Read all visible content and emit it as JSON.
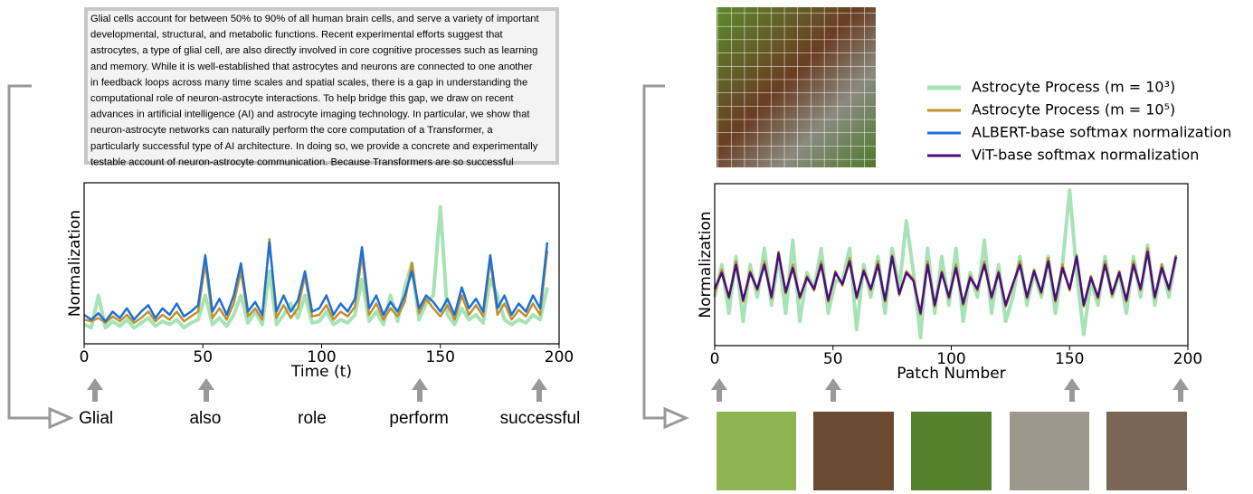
{
  "passage": {
    "lines": [
      "Glial cells account for between 50% to 90% of all human brain cells, and serve a variety of important",
      "developmental, structural, and metabolic functions. Recent experimental efforts suggest that",
      "astrocytes, a type of glial cell, are also directly involved in core cognitive processes such as learning",
      "and memory. While it is well-established that astrocytes and neurons are connected to one another",
      "in feedback loops across many time scales and spatial scales, there is a gap in understanding the",
      "computational role of neuron-astrocyte interactions. To help bridge this gap, we draw on recent",
      "advances in artificial intelligence (AI) and astrocyte imaging technology. In particular, we show that",
      "neuron-astrocyte networks can naturally perform the core computation of a Transformer, a",
      "particularly successful type of AI architecture. In doing so, we provide a concrete and experimentally",
      "testable account of neuron-astrocyte communication. Because Transformers are so successful"
    ]
  },
  "chart_data": [
    {
      "type": "line",
      "xlabel": "Time (t)",
      "ylabel": "Normalization",
      "xlim": [
        0,
        200
      ],
      "xticks": [
        0,
        50,
        100,
        150,
        200
      ],
      "ylim": [
        0,
        1
      ],
      "x": [
        0,
        3,
        6,
        9,
        12,
        15,
        18,
        21,
        24,
        27,
        30,
        33,
        36,
        39,
        42,
        45,
        48,
        51,
        54,
        57,
        60,
        63,
        66,
        69,
        72,
        75,
        78,
        81,
        84,
        87,
        90,
        93,
        96,
        99,
        102,
        105,
        108,
        111,
        114,
        117,
        120,
        123,
        126,
        129,
        132,
        135,
        138,
        141,
        144,
        147,
        150,
        153,
        156,
        159,
        162,
        165,
        168,
        171,
        174,
        177,
        180,
        183,
        186,
        189,
        192,
        195
      ],
      "series": [
        {
          "color": "#a6e3b5",
          "values": [
            0.12,
            0.1,
            0.3,
            0.1,
            0.14,
            0.11,
            0.15,
            0.1,
            0.13,
            0.16,
            0.11,
            0.14,
            0.12,
            0.15,
            0.1,
            0.13,
            0.15,
            0.3,
            0.12,
            0.16,
            0.11,
            0.18,
            0.3,
            0.13,
            0.2,
            0.12,
            0.45,
            0.12,
            0.18,
            0.25,
            0.16,
            0.3,
            0.13,
            0.14,
            0.2,
            0.12,
            0.15,
            0.13,
            0.18,
            0.4,
            0.14,
            0.2,
            0.12,
            0.3,
            0.14,
            0.35,
            0.5,
            0.15,
            0.25,
            0.3,
            0.85,
            0.18,
            0.12,
            0.22,
            0.15,
            0.18,
            0.13,
            0.4,
            0.3,
            0.15,
            0.12,
            0.15,
            0.13,
            0.18,
            0.15,
            0.35
          ]
        },
        {
          "color": "#c0912f",
          "values": [
            0.15,
            0.14,
            0.16,
            0.13,
            0.17,
            0.14,
            0.18,
            0.13,
            0.16,
            0.2,
            0.14,
            0.18,
            0.15,
            0.2,
            0.14,
            0.17,
            0.2,
            0.5,
            0.16,
            0.22,
            0.15,
            0.25,
            0.45,
            0.17,
            0.22,
            0.15,
            0.65,
            0.16,
            0.24,
            0.16,
            0.22,
            0.42,
            0.17,
            0.18,
            0.24,
            0.15,
            0.2,
            0.17,
            0.23,
            0.55,
            0.18,
            0.25,
            0.15,
            0.22,
            0.17,
            0.26,
            0.5,
            0.19,
            0.28,
            0.22,
            0.17,
            0.24,
            0.15,
            0.3,
            0.18,
            0.24,
            0.17,
            0.52,
            0.18,
            0.25,
            0.15,
            0.21,
            0.17,
            0.25,
            0.18,
            0.58
          ]
        },
        {
          "name": "ALBERT-base softmax normalization",
          "color": "#1f6fd6",
          "values": [
            0.18,
            0.15,
            0.19,
            0.14,
            0.2,
            0.16,
            0.22,
            0.15,
            0.2,
            0.24,
            0.16,
            0.22,
            0.18,
            0.25,
            0.17,
            0.2,
            0.24,
            0.55,
            0.2,
            0.28,
            0.18,
            0.3,
            0.5,
            0.2,
            0.26,
            0.18,
            0.63,
            0.2,
            0.3,
            0.2,
            0.27,
            0.45,
            0.2,
            0.22,
            0.3,
            0.18,
            0.25,
            0.2,
            0.28,
            0.6,
            0.22,
            0.3,
            0.18,
            0.26,
            0.2,
            0.3,
            0.45,
            0.22,
            0.3,
            0.26,
            0.2,
            0.28,
            0.18,
            0.35,
            0.22,
            0.28,
            0.2,
            0.55,
            0.22,
            0.3,
            0.18,
            0.25,
            0.2,
            0.3,
            0.22,
            0.63
          ]
        }
      ],
      "annotations": [
        {
          "x": 5,
          "label": "Glial"
        },
        {
          "x": 51,
          "label": "also"
        },
        {
          "x": 96,
          "label": "role"
        },
        {
          "x": 141,
          "label": "perform"
        },
        {
          "x": 192,
          "label": "successful"
        }
      ]
    },
    {
      "type": "line",
      "xlabel": "Patch Number",
      "ylabel": "Normalization",
      "xlim": [
        0,
        200
      ],
      "xticks": [
        0,
        50,
        100,
        150,
        200
      ],
      "ylim": [
        0,
        1
      ],
      "x": [
        0,
        3,
        6,
        9,
        12,
        15,
        18,
        21,
        24,
        27,
        30,
        33,
        36,
        39,
        42,
        45,
        48,
        51,
        54,
        57,
        60,
        63,
        66,
        69,
        72,
        75,
        78,
        81,
        84,
        87,
        90,
        93,
        96,
        99,
        102,
        105,
        108,
        111,
        114,
        117,
        120,
        123,
        126,
        129,
        132,
        135,
        138,
        141,
        144,
        147,
        150,
        153,
        156,
        159,
        162,
        165,
        168,
        171,
        174,
        177,
        180,
        183,
        186,
        189,
        192,
        195
      ],
      "series": [
        {
          "name": "Astrocyte Process (m = 10³)",
          "color": "#a6e3b5",
          "values": [
            0.3,
            0.5,
            0.2,
            0.55,
            0.15,
            0.5,
            0.3,
            0.6,
            0.25,
            0.55,
            0.2,
            0.65,
            0.15,
            0.45,
            0.35,
            0.6,
            0.2,
            0.4,
            0.4,
            0.6,
            0.1,
            0.5,
            0.3,
            0.55,
            0.2,
            0.6,
            0.35,
            0.77,
            0.45,
            0.05,
            0.6,
            0.2,
            0.55,
            0.25,
            0.6,
            0.15,
            0.45,
            0.3,
            0.65,
            0.2,
            0.5,
            0.15,
            0.3,
            0.55,
            0.25,
            0.45,
            0.3,
            0.55,
            0.2,
            0.5,
            0.96,
            0.45,
            0.07,
            0.4,
            0.25,
            0.55,
            0.3,
            0.45,
            0.2,
            0.55,
            0.3,
            0.62,
            0.25,
            0.5,
            0.3,
            0.55
          ]
        },
        {
          "name": "Astrocyte Process (m = 10⁵)",
          "color": "#c0912f",
          "values": [
            0.33,
            0.47,
            0.29,
            0.52,
            0.27,
            0.46,
            0.34,
            0.52,
            0.29,
            0.58,
            0.32,
            0.5,
            0.29,
            0.43,
            0.34,
            0.52,
            0.27,
            0.46,
            0.37,
            0.54,
            0.29,
            0.47,
            0.34,
            0.52,
            0.27,
            0.56,
            0.31,
            0.46,
            0.41,
            0.19,
            0.52,
            0.24,
            0.46,
            0.29,
            0.5,
            0.25,
            0.43,
            0.34,
            0.52,
            0.29,
            0.46,
            0.24,
            0.37,
            0.52,
            0.29,
            0.47,
            0.32,
            0.54,
            0.27,
            0.5,
            0.34,
            0.56,
            0.24,
            0.43,
            0.29,
            0.52,
            0.31,
            0.46,
            0.27,
            0.52,
            0.34,
            0.6,
            0.29,
            0.5,
            0.34,
            0.56
          ]
        },
        {
          "name": "ViT-base softmax normalization",
          "color": "#4b0f7a",
          "values": [
            0.35,
            0.45,
            0.3,
            0.5,
            0.28,
            0.45,
            0.35,
            0.5,
            0.3,
            0.57,
            0.33,
            0.48,
            0.3,
            0.42,
            0.35,
            0.5,
            0.28,
            0.45,
            0.38,
            0.52,
            0.3,
            0.46,
            0.35,
            0.5,
            0.28,
            0.55,
            0.32,
            0.45,
            0.4,
            0.2,
            0.5,
            0.25,
            0.45,
            0.3,
            0.48,
            0.26,
            0.42,
            0.35,
            0.5,
            0.3,
            0.45,
            0.25,
            0.38,
            0.5,
            0.3,
            0.46,
            0.33,
            0.52,
            0.28,
            0.48,
            0.35,
            0.55,
            0.25,
            0.42,
            0.3,
            0.5,
            0.32,
            0.45,
            0.28,
            0.5,
            0.35,
            0.58,
            0.3,
            0.48,
            0.35,
            0.55
          ]
        }
      ]
    }
  ]
}
